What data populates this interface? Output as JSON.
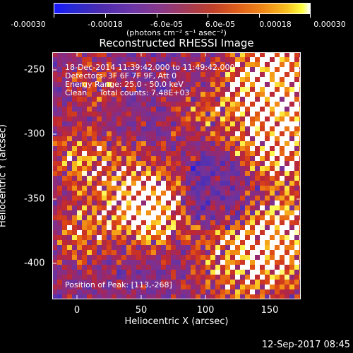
{
  "colorbar": {
    "ticks": [
      "-0.00030",
      "-0.00018",
      "-6.0e-05",
      "6.0e-05",
      "0.00018",
      "0.00030"
    ],
    "units": "(photons cm⁻² s⁻¹ asec⁻²)"
  },
  "overlay": {
    "line1": "18-Dec-2014 11:39:42.000 to 11:49:42.000",
    "line2": "Detectors: 3F 6F 7F 9F, Att 0",
    "line3": "Energy Range: 25.0 - 50.0 keV",
    "line4": "Clean     Total counts: 7.48E+03",
    "position": "Position of Peak: [113,-268]"
  },
  "timestamp": "12-Sep-2017 08:45",
  "chart_data": {
    "type": "heatmap",
    "title": "Reconstructed RHESSI Image",
    "xlabel": "Heliocentric X (arcsec)",
    "ylabel": "Heliocentric Y (arcsec)",
    "xlim": [
      -18,
      175
    ],
    "ylim": [
      -428,
      -236
    ],
    "x_ticks": [
      0,
      50,
      100,
      150
    ],
    "y_ticks": [
      -250,
      -300,
      -350,
      -400
    ],
    "colorbar_range": [
      -0.0003,
      0.0003
    ],
    "peak": [
      113,
      -268
    ]
  }
}
